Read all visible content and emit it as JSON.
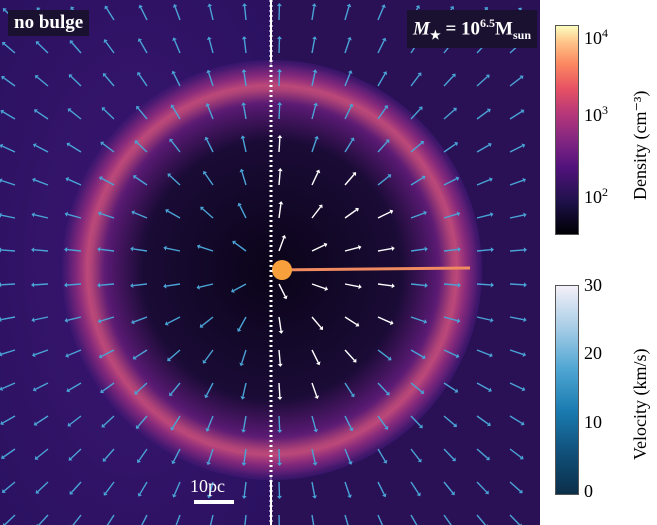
{
  "panels": {
    "left_label": "no bulge",
    "right_label_prefix": "M",
    "right_label_sub": "★",
    "right_label_eq": " = 10",
    "right_label_exp": "6.5",
    "right_label_unit": "M",
    "right_label_unit_sub": "sun"
  },
  "scale_bar": {
    "label": "10pc"
  },
  "colorbar_density": {
    "title": "Density (cm⁻³)",
    "ticks": [
      {
        "base": "10",
        "exp": "4"
      },
      {
        "base": "10",
        "exp": "3"
      },
      {
        "base": "10",
        "exp": "2"
      }
    ]
  },
  "colorbar_velocity": {
    "title": "Velocity (km/s)",
    "ticks": [
      "30",
      "20",
      "10",
      "0"
    ]
  },
  "colors": {
    "background_sim": "#2a1258",
    "shell": "#b8447a",
    "arrow_left": "#4aa3d6",
    "arrow_fast": "#ffffff"
  }
}
